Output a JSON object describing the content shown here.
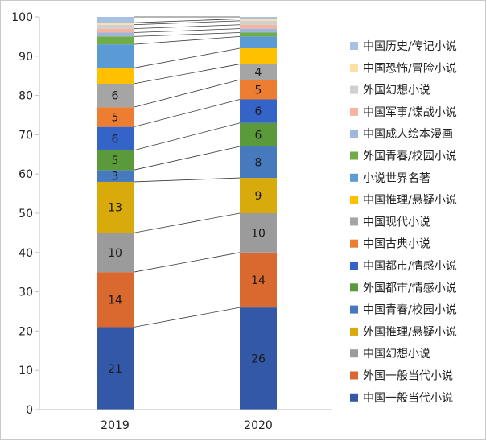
{
  "chart_data": {
    "type": "bar",
    "stacked": true,
    "categories": [
      "2019",
      "2020"
    ],
    "ylim": [
      0,
      100
    ],
    "yticks": [
      0,
      10,
      20,
      30,
      40,
      50,
      60,
      70,
      80,
      90,
      100
    ],
    "connector_lines": true,
    "legend_position": "right",
    "series": [
      {
        "name": "中国一般当代小说",
        "color": "#3358a8",
        "values": [
          21,
          26
        ],
        "labels": [
          "21",
          "26"
        ]
      },
      {
        "name": "外国一般当代小说",
        "color": "#d9692e",
        "values": [
          14,
          14
        ],
        "labels": [
          "14",
          "14"
        ]
      },
      {
        "name": "中国幻想小说",
        "color": "#9b9b9b",
        "values": [
          10,
          10
        ],
        "labels": [
          "10",
          "10"
        ]
      },
      {
        "name": "外国推理/悬疑小说",
        "color": "#d8aa0c",
        "values": [
          13,
          9
        ],
        "labels": [
          "13",
          "9"
        ]
      },
      {
        "name": "中国青春/校园小说",
        "color": "#4779bd",
        "values": [
          3,
          8
        ],
        "labels": [
          "3",
          "8"
        ]
      },
      {
        "name": "外国都市/情感小说",
        "color": "#5b9a3b",
        "values": [
          5,
          6
        ],
        "labels": [
          "5",
          "6"
        ]
      },
      {
        "name": "中国都市/情感小说",
        "color": "#3564c9",
        "values": [
          6,
          6
        ],
        "labels": [
          "6",
          "6"
        ]
      },
      {
        "name": "中国古典小说",
        "color": "#ed7d31",
        "values": [
          5,
          5
        ],
        "labels": [
          "5",
          "5"
        ]
      },
      {
        "name": "中国现代小说",
        "color": "#a5a5a5",
        "values": [
          6,
          4
        ],
        "labels": [
          "6",
          "4"
        ]
      },
      {
        "name": "中国推理/悬疑小说",
        "color": "#ffc000",
        "values": [
          4,
          4
        ],
        "labels": [
          "",
          ""
        ]
      },
      {
        "name": "小说世界名著",
        "color": "#5b9bd5",
        "values": [
          6,
          3
        ],
        "labels": [
          "",
          ""
        ]
      },
      {
        "name": "外国青春/校园小说",
        "color": "#70ad47",
        "values": [
          2,
          1
        ],
        "labels": [
          "",
          ""
        ]
      },
      {
        "name": "中国成人绘本漫画",
        "color": "#9fb6dc",
        "values": [
          1,
          1
        ],
        "labels": [
          "",
          ""
        ]
      },
      {
        "name": "中国军事/谍战小说",
        "color": "#f4b5a0",
        "values": [
          1,
          1
        ],
        "labels": [
          "",
          ""
        ]
      },
      {
        "name": "外国幻想小说",
        "color": "#d0d0d0",
        "values": [
          1,
          1
        ],
        "labels": [
          "",
          ""
        ]
      },
      {
        "name": "中国恐怖/冒险小说",
        "color": "#fbe0a6",
        "values": [
          0.5,
          0.5
        ],
        "labels": [
          "",
          ""
        ]
      },
      {
        "name": "中国历史/传记小说",
        "color": "#a7c0e3",
        "values": [
          1.5,
          0.5
        ],
        "labels": [
          "",
          ""
        ]
      }
    ]
  }
}
